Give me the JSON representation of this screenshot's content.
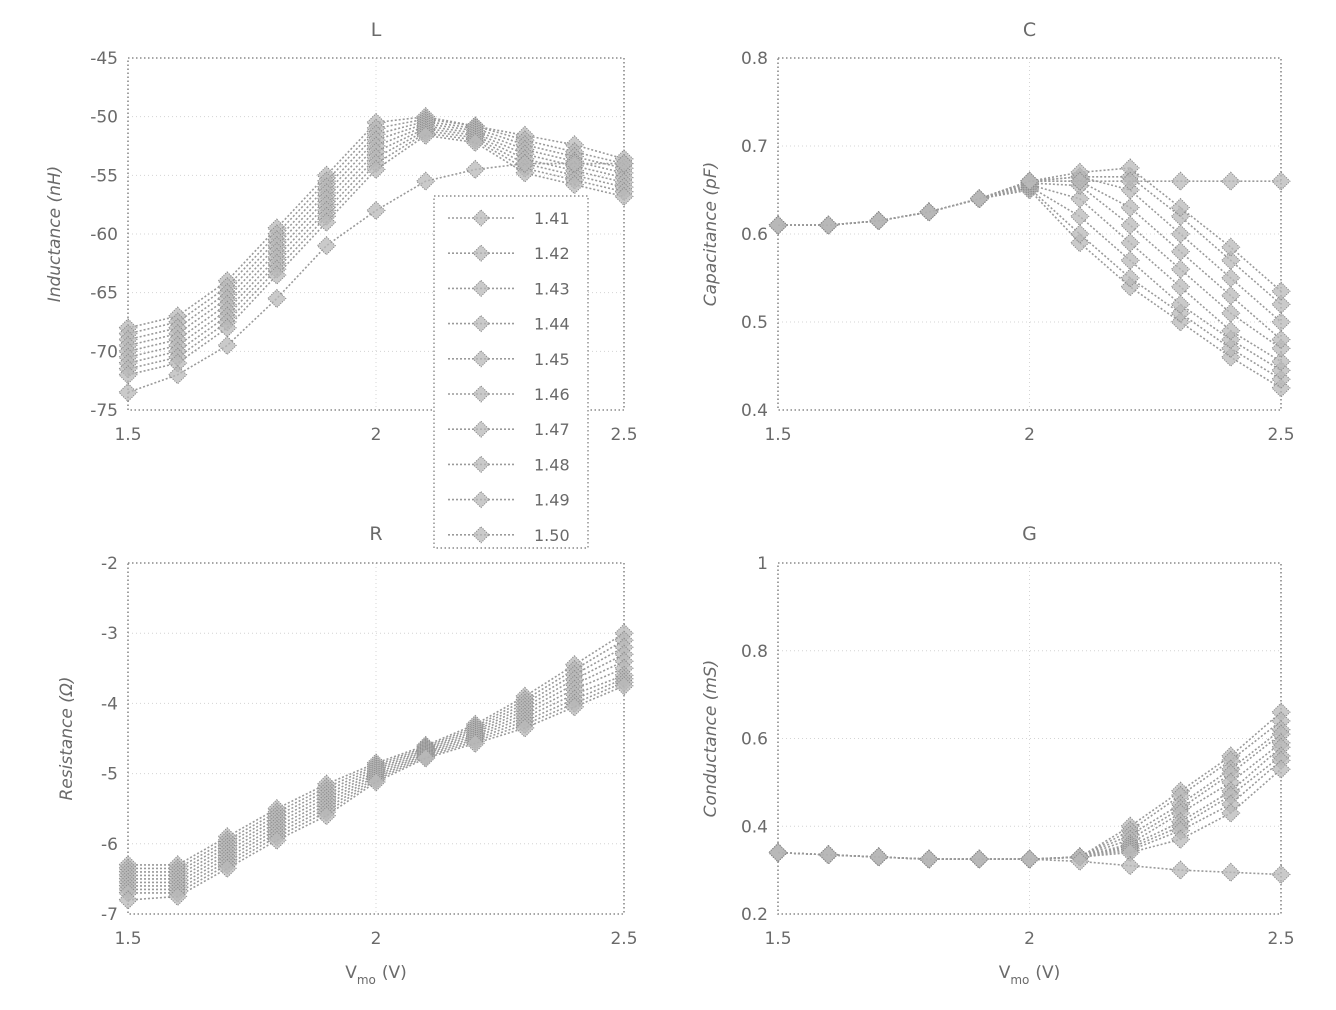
{
  "figure": {
    "xlabel": "V",
    "xlabel_sub": "mo",
    "xlabel_unit": "(V)"
  },
  "chart_data": [
    {
      "type": "line",
      "title": "L",
      "xlabel": "",
      "ylabel": "Inductance (nH)",
      "xlim": [
        1.5,
        2.5
      ],
      "ylim": [
        -75,
        -45
      ],
      "xticks": [
        1.5,
        2,
        2.5
      ],
      "xtick_labels": [
        "1.5",
        "2",
        "2.5"
      ],
      "yticks": [
        -45,
        -50,
        -55,
        -60,
        -65,
        -70,
        -75
      ],
      "ytick_labels": [
        "-45",
        "-50",
        "-55",
        "-60",
        "-65",
        "-70",
        "-75"
      ],
      "x": [
        1.5,
        1.6,
        1.7,
        1.8,
        1.9,
        2.0,
        2.1,
        2.2,
        2.3,
        2.4,
        2.5
      ],
      "series": [
        {
          "name": "1.41",
          "values": [
            -68.0,
            -67.0,
            -64.0,
            -59.5,
            -55.0,
            -50.5,
            -50.0,
            -50.8,
            -51.6,
            -52.4,
            -53.6
          ]
        },
        {
          "name": "1.42",
          "values": [
            -68.5,
            -67.5,
            -64.5,
            -60.0,
            -55.5,
            -51.0,
            -50.2,
            -50.8,
            -52.0,
            -53.0,
            -54.0
          ]
        },
        {
          "name": "1.43",
          "values": [
            -69.0,
            -68.0,
            -65.0,
            -60.5,
            -56.0,
            -51.5,
            -50.4,
            -51.0,
            -52.4,
            -53.4,
            -54.4
          ]
        },
        {
          "name": "1.44",
          "values": [
            -69.5,
            -68.5,
            -65.5,
            -61.0,
            -56.5,
            -52.0,
            -50.6,
            -51.2,
            -52.8,
            -53.8,
            -54.8
          ]
        },
        {
          "name": "1.45",
          "values": [
            -70.0,
            -69.0,
            -66.0,
            -61.5,
            -57.0,
            -52.5,
            -50.8,
            -51.4,
            -53.2,
            -54.2,
            -55.2
          ]
        },
        {
          "name": "1.46",
          "values": [
            -70.5,
            -69.5,
            -66.5,
            -62.0,
            -57.5,
            -53.0,
            -51.0,
            -51.6,
            -53.6,
            -54.6,
            -55.6
          ]
        },
        {
          "name": "1.47",
          "values": [
            -71.0,
            -70.0,
            -67.0,
            -62.5,
            -58.0,
            -53.5,
            -51.2,
            -51.8,
            -54.0,
            -55.0,
            -56.0
          ]
        },
        {
          "name": "1.48",
          "values": [
            -71.5,
            -70.5,
            -67.5,
            -63.0,
            -58.5,
            -54.0,
            -51.4,
            -52.0,
            -54.4,
            -55.4,
            -56.4
          ]
        },
        {
          "name": "1.49",
          "values": [
            -72.0,
            -71.0,
            -68.0,
            -63.5,
            -59.0,
            -54.5,
            -51.6,
            -52.2,
            -54.8,
            -55.8,
            -56.8
          ]
        },
        {
          "name": "1.50",
          "values": [
            -73.5,
            -72.0,
            -69.5,
            -65.5,
            -61.0,
            -58.0,
            -55.5,
            -54.5,
            -54.0,
            -54.0,
            -54.0
          ]
        }
      ],
      "legend": {
        "location": "upper-middle",
        "entries": [
          "1.41",
          "1.42",
          "1.43",
          "1.44",
          "1.45",
          "1.46",
          "1.47",
          "1.48",
          "1.49",
          "1.50"
        ]
      }
    },
    {
      "type": "line",
      "title": "C",
      "xlabel": "",
      "ylabel": "Capacitance (pF)",
      "xlim": [
        1.5,
        2.5
      ],
      "ylim": [
        0.4,
        0.8
      ],
      "xticks": [
        1.5,
        2,
        2.5
      ],
      "xtick_labels": [
        "1.5",
        "2",
        "2.5"
      ],
      "yticks": [
        0.4,
        0.5,
        0.6,
        0.7,
        0.8
      ],
      "ytick_labels": [
        "0.4",
        "0.5",
        "0.6",
        "0.7",
        "0.8"
      ],
      "x": [
        1.5,
        1.6,
        1.7,
        1.8,
        1.9,
        2.0,
        2.1,
        2.2,
        2.3,
        2.4,
        2.5
      ],
      "series": [
        {
          "name": "1.41",
          "values": [
            0.61,
            0.61,
            0.615,
            0.625,
            0.64,
            0.65,
            0.59,
            0.54,
            0.5,
            0.46,
            0.425
          ]
        },
        {
          "name": "1.42",
          "values": [
            0.61,
            0.61,
            0.615,
            0.625,
            0.64,
            0.652,
            0.6,
            0.55,
            0.51,
            0.47,
            0.435
          ]
        },
        {
          "name": "1.43",
          "values": [
            0.61,
            0.61,
            0.615,
            0.625,
            0.64,
            0.654,
            0.62,
            0.57,
            0.52,
            0.48,
            0.445
          ]
        },
        {
          "name": "1.44",
          "values": [
            0.61,
            0.61,
            0.615,
            0.625,
            0.64,
            0.656,
            0.64,
            0.59,
            0.54,
            0.49,
            0.455
          ]
        },
        {
          "name": "1.45",
          "values": [
            0.61,
            0.61,
            0.615,
            0.625,
            0.64,
            0.658,
            0.655,
            0.61,
            0.56,
            0.51,
            0.47
          ]
        },
        {
          "name": "1.46",
          "values": [
            0.61,
            0.61,
            0.615,
            0.625,
            0.64,
            0.66,
            0.66,
            0.63,
            0.58,
            0.53,
            0.48
          ]
        },
        {
          "name": "1.47",
          "values": [
            0.61,
            0.61,
            0.615,
            0.625,
            0.64,
            0.66,
            0.665,
            0.65,
            0.6,
            0.55,
            0.5
          ]
        },
        {
          "name": "1.48",
          "values": [
            0.61,
            0.61,
            0.615,
            0.625,
            0.64,
            0.66,
            0.665,
            0.665,
            0.62,
            0.57,
            0.52
          ]
        },
        {
          "name": "1.49",
          "values": [
            0.61,
            0.61,
            0.615,
            0.625,
            0.64,
            0.66,
            0.67,
            0.675,
            0.63,
            0.585,
            0.535
          ]
        },
        {
          "name": "1.50",
          "values": [
            0.61,
            0.61,
            0.615,
            0.625,
            0.64,
            0.66,
            0.66,
            0.66,
            0.66,
            0.66,
            0.66
          ]
        }
      ]
    },
    {
      "type": "line",
      "title": "R",
      "xlabel": "V_mo (V)",
      "ylabel": "Resistance (Ω)",
      "xlim": [
        1.5,
        2.5
      ],
      "ylim": [
        -7,
        -2
      ],
      "xticks": [
        1.5,
        2,
        2.5
      ],
      "xtick_labels": [
        "1.5",
        "2",
        "2.5"
      ],
      "yticks": [
        -2,
        -3,
        -4,
        -5,
        -6,
        -7
      ],
      "ytick_labels": [
        "-2",
        "-3",
        "-4",
        "-5",
        "-6",
        "-7"
      ],
      "x": [
        1.5,
        1.6,
        1.7,
        1.8,
        1.9,
        2.0,
        2.1,
        2.2,
        2.3,
        2.4,
        2.5
      ],
      "series": [
        {
          "name": "1.41",
          "values": [
            -6.3,
            -6.3,
            -5.9,
            -5.5,
            -5.15,
            -4.85,
            -4.6,
            -4.3,
            -3.9,
            -3.45,
            -3.0
          ]
        },
        {
          "name": "1.42",
          "values": [
            -6.35,
            -6.35,
            -5.95,
            -5.55,
            -5.2,
            -4.88,
            -4.62,
            -4.33,
            -3.95,
            -3.52,
            -3.1
          ]
        },
        {
          "name": "1.43",
          "values": [
            -6.4,
            -6.4,
            -6.0,
            -5.6,
            -5.25,
            -4.91,
            -4.64,
            -4.36,
            -4.0,
            -3.59,
            -3.2
          ]
        },
        {
          "name": "1.44",
          "values": [
            -6.45,
            -6.45,
            -6.05,
            -5.65,
            -5.3,
            -4.94,
            -4.66,
            -4.39,
            -4.05,
            -3.66,
            -3.3
          ]
        },
        {
          "name": "1.45",
          "values": [
            -6.5,
            -6.5,
            -6.1,
            -5.7,
            -5.35,
            -4.97,
            -4.68,
            -4.42,
            -4.1,
            -3.73,
            -3.4
          ]
        },
        {
          "name": "1.46",
          "values": [
            -6.55,
            -6.55,
            -6.15,
            -5.75,
            -5.4,
            -5.0,
            -4.7,
            -4.45,
            -4.15,
            -3.8,
            -3.5
          ]
        },
        {
          "name": "1.47",
          "values": [
            -6.6,
            -6.6,
            -6.2,
            -5.8,
            -5.45,
            -5.03,
            -4.72,
            -4.48,
            -4.2,
            -3.87,
            -3.6
          ]
        },
        {
          "name": "1.48",
          "values": [
            -6.65,
            -6.65,
            -6.25,
            -5.85,
            -5.5,
            -5.06,
            -4.74,
            -4.51,
            -4.25,
            -3.94,
            -3.65
          ]
        },
        {
          "name": "1.49",
          "values": [
            -6.7,
            -6.7,
            -6.3,
            -5.9,
            -5.55,
            -5.09,
            -4.76,
            -4.54,
            -4.3,
            -4.0,
            -3.7
          ]
        },
        {
          "name": "1.50",
          "values": [
            -6.8,
            -6.75,
            -6.35,
            -5.95,
            -5.6,
            -5.12,
            -4.78,
            -4.57,
            -4.35,
            -4.05,
            -3.75
          ]
        }
      ]
    },
    {
      "type": "line",
      "title": "G",
      "xlabel": "V_mo (V)",
      "ylabel": "Conductance (mS)",
      "xlim": [
        1.5,
        2.5
      ],
      "ylim": [
        0.2,
        1.0
      ],
      "xticks": [
        1.5,
        2,
        2.5
      ],
      "xtick_labels": [
        "1.5",
        "2",
        "2.5"
      ],
      "yticks": [
        1.0,
        0.8,
        0.6,
        0.4,
        0.2
      ],
      "ytick_labels": [
        "1",
        "0.8",
        "0.6",
        "0.4",
        "0.2"
      ],
      "x": [
        1.5,
        1.6,
        1.7,
        1.8,
        1.9,
        2.0,
        2.1,
        2.2,
        2.3,
        2.4,
        2.5
      ],
      "series": [
        {
          "name": "1.41",
          "values": [
            0.34,
            0.335,
            0.33,
            0.325,
            0.325,
            0.325,
            0.33,
            0.4,
            0.48,
            0.56,
            0.66
          ]
        },
        {
          "name": "1.42",
          "values": [
            0.34,
            0.335,
            0.33,
            0.325,
            0.325,
            0.325,
            0.33,
            0.39,
            0.47,
            0.55,
            0.64
          ]
        },
        {
          "name": "1.43",
          "values": [
            0.34,
            0.335,
            0.33,
            0.325,
            0.325,
            0.325,
            0.33,
            0.38,
            0.45,
            0.53,
            0.62
          ]
        },
        {
          "name": "1.44",
          "values": [
            0.34,
            0.335,
            0.33,
            0.325,
            0.325,
            0.325,
            0.33,
            0.37,
            0.44,
            0.52,
            0.61
          ]
        },
        {
          "name": "1.45",
          "values": [
            0.34,
            0.335,
            0.33,
            0.325,
            0.325,
            0.325,
            0.33,
            0.36,
            0.43,
            0.5,
            0.59
          ]
        },
        {
          "name": "1.46",
          "values": [
            0.34,
            0.335,
            0.33,
            0.325,
            0.325,
            0.325,
            0.33,
            0.355,
            0.41,
            0.48,
            0.58
          ]
        },
        {
          "name": "1.47",
          "values": [
            0.34,
            0.335,
            0.33,
            0.325,
            0.325,
            0.325,
            0.33,
            0.35,
            0.4,
            0.47,
            0.56
          ]
        },
        {
          "name": "1.48",
          "values": [
            0.34,
            0.335,
            0.33,
            0.325,
            0.325,
            0.325,
            0.33,
            0.345,
            0.39,
            0.45,
            0.55
          ]
        },
        {
          "name": "1.49",
          "values": [
            0.34,
            0.335,
            0.33,
            0.325,
            0.325,
            0.325,
            0.33,
            0.34,
            0.37,
            0.43,
            0.53
          ]
        },
        {
          "name": "1.50",
          "values": [
            0.34,
            0.335,
            0.33,
            0.325,
            0.325,
            0.325,
            0.32,
            0.31,
            0.3,
            0.295,
            0.29
          ]
        }
      ]
    }
  ]
}
